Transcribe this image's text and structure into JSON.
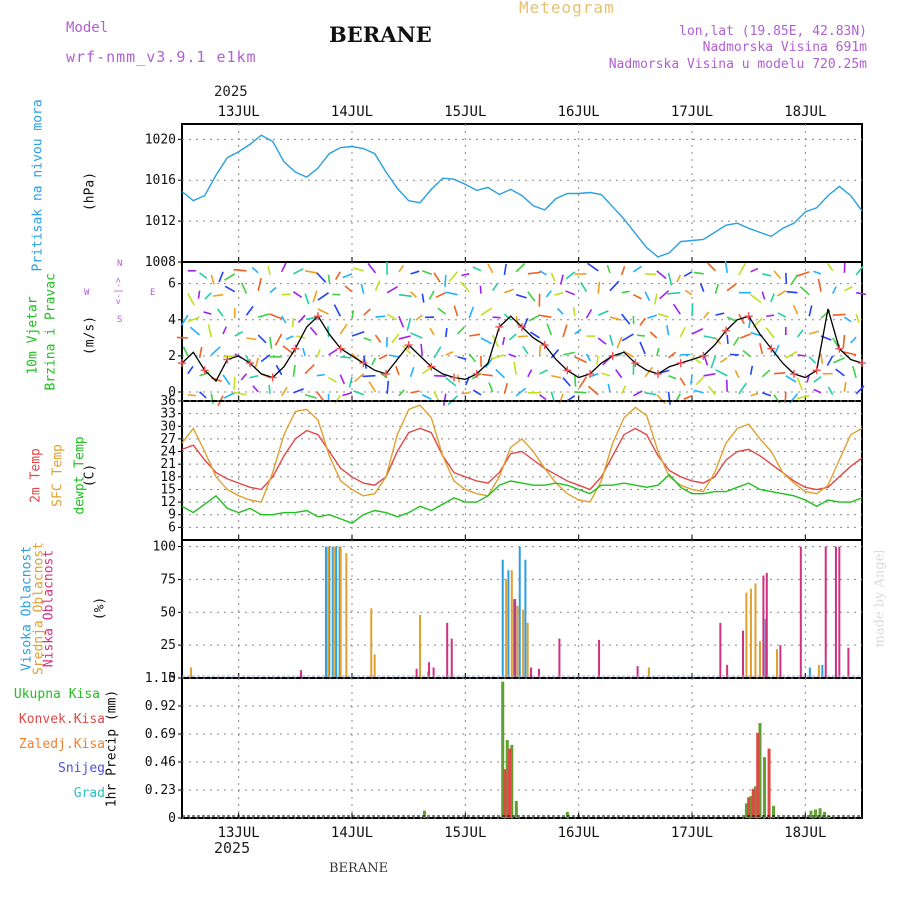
{
  "header": {
    "meteogram": "Meteogram",
    "model_label": "Model",
    "model_name": "wrf-nmm_v3.9.1 e1km",
    "station": "BERANE",
    "lonlat": "lon,lat (19.85E, 42.83N)",
    "altitude": "Nadmorska Visina 691m",
    "model_altitude": "Nadmorska Visina u modelu 720.25m",
    "year": "2025",
    "footer_station": "BERANE",
    "watermark": "made by Angel"
  },
  "colors": {
    "pressure": "#2aa0e0",
    "temp_2m": "#e04848",
    "sfc_temp": "#e0a030",
    "dewpt": "#20c020",
    "title_purple": "#b060d0",
    "meteogram": "#e8c070",
    "grid": "#888888"
  },
  "chart_data": [
    {
      "type": "line",
      "panel": "pressure",
      "ylabel_title": "Pritisak na nivou mora",
      "ylabel_unit": "(hPa)",
      "ylim": [
        1008,
        1021.5
      ],
      "yticks": [
        1008,
        1012,
        1016,
        1020
      ],
      "xlim": [
        12.5,
        18.5
      ],
      "xticks": [
        "13JUL",
        "14JUL",
        "15JUL",
        "16JUL",
        "17JUL",
        "18JUL"
      ],
      "grid": true,
      "series": [
        {
          "name": "",
          "x": [
            12.5,
            12.6,
            12.7,
            12.8,
            12.9,
            13.0,
            13.1,
            13.2,
            13.3,
            13.4,
            13.5,
            13.6,
            13.7,
            13.8,
            13.9,
            14.0,
            14.1,
            14.2,
            14.3,
            14.4,
            14.5,
            14.6,
            14.7,
            14.8,
            14.9,
            15.0,
            15.1,
            15.2,
            15.3,
            15.4,
            15.5,
            15.6,
            15.7,
            15.8,
            15.9,
            16.0,
            16.1,
            16.2,
            16.3,
            16.4,
            16.5,
            16.6,
            16.7,
            16.8,
            16.9,
            17.0,
            17.1,
            17.2,
            17.3,
            17.4,
            17.5,
            17.6,
            17.7,
            17.8,
            17.9,
            18.0,
            18.1,
            18.2,
            18.3,
            18.4,
            18.5
          ],
          "values": [
            1014.9,
            1014.0,
            1014.5,
            1016.5,
            1018.2,
            1018.8,
            1019.5,
            1020.4,
            1019.8,
            1017.8,
            1016.8,
            1016.3,
            1017.2,
            1018.6,
            1019.2,
            1019.3,
            1019.1,
            1018.6,
            1016.8,
            1015.2,
            1014.0,
            1013.8,
            1015.1,
            1016.2,
            1016.1,
            1015.6,
            1015.0,
            1015.3,
            1014.6,
            1015.1,
            1014.5,
            1013.5,
            1013.1,
            1014.2,
            1014.7,
            1014.7,
            1014.8,
            1014.6,
            1013.4,
            1012.2,
            1010.8,
            1009.4,
            1008.5,
            1008.9,
            1010.0,
            1010.1,
            1010.2,
            1010.9,
            1011.6,
            1011.8,
            1011.3,
            1010.9,
            1010.5,
            1011.3,
            1011.8,
            1012.9,
            1013.3,
            1014.5,
            1015.4,
            1014.5,
            1013.0
          ]
        }
      ]
    },
    {
      "type": "line",
      "panel": "wind",
      "ylabel_title": "10m Vjetar",
      "ylabel_title2": "Brzina i Pravac",
      "ylabel_unit": "(m/s)",
      "compass": {
        "w": "W",
        "n": "N",
        "e": "E",
        "s": "S",
        "arrows": "<-|->"
      },
      "ylim": [
        -0.5,
        7.2
      ],
      "yticks": [
        0,
        2,
        4,
        6
      ],
      "xlim": [
        12.5,
        18.5
      ],
      "grid": true,
      "series": [
        {
          "name": "",
          "x": [
            12.5,
            12.6,
            12.7,
            12.8,
            12.9,
            13.0,
            13.1,
            13.2,
            13.3,
            13.4,
            13.5,
            13.6,
            13.7,
            13.8,
            13.9,
            14.0,
            14.1,
            14.2,
            14.3,
            14.4,
            14.5,
            14.6,
            14.7,
            14.8,
            14.9,
            15.0,
            15.1,
            15.2,
            15.3,
            15.4,
            15.5,
            15.6,
            15.7,
            15.8,
            15.9,
            16.0,
            16.1,
            16.2,
            16.3,
            16.4,
            16.5,
            16.6,
            16.7,
            16.8,
            16.9,
            17.0,
            17.1,
            17.2,
            17.3,
            17.4,
            17.5,
            17.6,
            17.7,
            17.8,
            17.9,
            18.0,
            18.1,
            18.2,
            18.3,
            18.4,
            18.5
          ],
          "values": [
            1.6,
            2.2,
            1.2,
            0.6,
            1.8,
            2.0,
            1.6,
            1.0,
            0.8,
            1.4,
            2.4,
            3.6,
            4.2,
            3.2,
            2.4,
            2.0,
            1.6,
            1.2,
            1.0,
            1.8,
            2.6,
            2.0,
            1.4,
            1.0,
            0.8,
            0.7,
            1.0,
            1.6,
            3.6,
            4.2,
            3.6,
            3.0,
            2.6,
            1.8,
            1.2,
            0.8,
            1.0,
            1.6,
            2.0,
            2.2,
            1.6,
            1.2,
            1.0,
            1.4,
            1.6,
            1.8,
            2.0,
            2.6,
            3.4,
            4.0,
            4.2,
            3.2,
            2.4,
            1.6,
            1.0,
            0.8,
            1.2,
            4.6,
            2.4,
            1.8,
            1.6
          ]
        }
      ]
    },
    {
      "type": "line",
      "panel": "temperature",
      "ylabel_t2m": "2m Temp",
      "ylabel_sfc": "SFC Temp",
      "ylabel_dew": "dewpt Temp",
      "ylabel_unit": "(C)",
      "ylim": [
        3,
        36
      ],
      "yticks": [
        6,
        9,
        12,
        15,
        18,
        21,
        24,
        27,
        30,
        33,
        36
      ],
      "xlim": [
        12.5,
        18.5
      ],
      "grid": true,
      "series": [
        {
          "name": "2m Temp",
          "x": [
            12.5,
            12.6,
            12.7,
            12.8,
            12.9,
            13.0,
            13.1,
            13.2,
            13.3,
            13.4,
            13.5,
            13.6,
            13.7,
            13.8,
            13.9,
            14.0,
            14.1,
            14.2,
            14.3,
            14.4,
            14.5,
            14.6,
            14.7,
            14.8,
            14.9,
            15.0,
            15.1,
            15.2,
            15.3,
            15.4,
            15.5,
            15.6,
            15.7,
            15.8,
            15.9,
            16.0,
            16.1,
            16.2,
            16.3,
            16.4,
            16.5,
            16.6,
            16.7,
            16.8,
            16.9,
            17.0,
            17.1,
            17.2,
            17.3,
            17.4,
            17.5,
            17.6,
            17.7,
            17.8,
            17.9,
            18.0,
            18.1,
            18.2,
            18.3,
            18.4,
            18.5
          ],
          "values": [
            24.5,
            25.5,
            22.0,
            19.0,
            17.5,
            16.5,
            15.5,
            15.0,
            18.0,
            23.0,
            27.0,
            29.0,
            28.0,
            24.0,
            20.0,
            18.0,
            16.5,
            16.0,
            18.0,
            24.0,
            28.5,
            29.5,
            28.5,
            23.0,
            19.0,
            18.0,
            17.0,
            16.5,
            19.0,
            23.5,
            24.0,
            22.0,
            20.0,
            18.5,
            17.0,
            16.0,
            15.0,
            18.0,
            23.0,
            28.0,
            29.5,
            28.0,
            23.0,
            19.5,
            18.0,
            17.0,
            16.5,
            18.0,
            22.0,
            24.0,
            24.5,
            23.0,
            21.0,
            19.0,
            17.0,
            15.5,
            15.0,
            15.5,
            18.0,
            20.5,
            22.5
          ]
        },
        {
          "name": "SFC Temp",
          "x": [
            12.5,
            12.6,
            12.7,
            12.8,
            12.9,
            13.0,
            13.1,
            13.2,
            13.3,
            13.4,
            13.5,
            13.6,
            13.7,
            13.8,
            13.9,
            14.0,
            14.1,
            14.2,
            14.3,
            14.4,
            14.5,
            14.6,
            14.7,
            14.8,
            14.9,
            15.0,
            15.1,
            15.2,
            15.3,
            15.4,
            15.5,
            15.6,
            15.7,
            15.8,
            15.9,
            16.0,
            16.1,
            16.2,
            16.3,
            16.4,
            16.5,
            16.6,
            16.7,
            16.8,
            16.9,
            17.0,
            17.1,
            17.2,
            17.3,
            17.4,
            17.5,
            17.6,
            17.7,
            17.8,
            17.9,
            18.0,
            18.1,
            18.2,
            18.3,
            18.4,
            18.5
          ],
          "values": [
            26.0,
            29.5,
            24.0,
            18.0,
            15.0,
            13.5,
            12.5,
            12.0,
            19.0,
            28.0,
            33.5,
            34.0,
            31.5,
            23.0,
            17.0,
            15.0,
            13.5,
            14.0,
            18.0,
            28.0,
            34.0,
            35.0,
            32.0,
            23.0,
            17.0,
            15.0,
            14.0,
            13.5,
            18.0,
            25.0,
            27.0,
            24.0,
            20.0,
            16.5,
            14.0,
            12.5,
            12.0,
            17.0,
            26.0,
            32.0,
            34.5,
            32.5,
            24.0,
            18.0,
            16.0,
            15.0,
            14.5,
            19.0,
            26.0,
            29.5,
            30.5,
            27.0,
            24.0,
            19.0,
            16.5,
            14.5,
            14.0,
            16.0,
            22.0,
            28.0,
            29.5
          ]
        },
        {
          "name": "dewpt Temp",
          "x": [
            12.5,
            12.6,
            12.7,
            12.8,
            12.9,
            13.0,
            13.1,
            13.2,
            13.3,
            13.4,
            13.5,
            13.6,
            13.7,
            13.8,
            13.9,
            14.0,
            14.1,
            14.2,
            14.3,
            14.4,
            14.5,
            14.6,
            14.7,
            14.8,
            14.9,
            15.0,
            15.1,
            15.2,
            15.3,
            15.4,
            15.5,
            15.6,
            15.7,
            15.8,
            15.9,
            16.0,
            16.1,
            16.2,
            16.3,
            16.4,
            16.5,
            16.6,
            16.7,
            16.8,
            16.9,
            17.0,
            17.1,
            17.2,
            17.3,
            17.4,
            17.5,
            17.6,
            17.7,
            17.8,
            17.9,
            18.0,
            18.1,
            18.2,
            18.3,
            18.4,
            18.5
          ],
          "values": [
            11.0,
            9.5,
            11.5,
            13.5,
            10.5,
            9.5,
            10.5,
            9.0,
            9.0,
            9.5,
            9.5,
            10.0,
            8.5,
            9.0,
            8.0,
            7.0,
            9.0,
            10.0,
            9.5,
            8.5,
            9.5,
            11.0,
            10.0,
            11.5,
            13.0,
            12.0,
            12.0,
            13.5,
            16.0,
            17.0,
            16.5,
            16.0,
            16.0,
            16.5,
            16.0,
            15.0,
            14.0,
            16.0,
            16.0,
            16.5,
            16.0,
            15.5,
            16.0,
            18.5,
            15.5,
            14.0,
            14.0,
            14.5,
            14.5,
            15.5,
            16.5,
            15.0,
            14.5,
            14.0,
            13.5,
            12.5,
            11.0,
            12.5,
            12.0,
            12.0,
            13.0
          ]
        }
      ]
    },
    {
      "type": "bar",
      "panel": "clouds",
      "ylabel_high": "Visoka Oblacnost",
      "ylabel_mid": "Srednja Oblacnost",
      "ylabel_low": "Niska Oblacnost",
      "ylabel_unit": "(%)",
      "ylim": [
        0,
        105
      ],
      "yticks": [
        0,
        25,
        50,
        75,
        100
      ],
      "xlim": [
        12.5,
        18.5
      ],
      "grid": true,
      "series": [
        {
          "name": "Visoka Oblacnost",
          "x": [
            13.77,
            13.8,
            13.83,
            13.86,
            13.89,
            15.33,
            15.38,
            15.43,
            15.48,
            15.53,
            17.65,
            18.04,
            18.15
          ],
          "values": [
            100,
            100,
            100,
            100,
            100,
            90,
            82,
            60,
            100,
            90,
            45,
            8,
            10
          ]
        },
        {
          "name": "Srednja Oblacnost",
          "x": [
            12.58,
            13.79,
            13.84,
            13.9,
            13.95,
            14.17,
            14.2,
            14.6,
            14.67,
            15.36,
            15.41,
            15.46,
            15.51,
            15.55,
            16.62,
            17.48,
            17.52,
            17.56,
            17.6,
            17.75,
            18.12
          ],
          "values": [
            8,
            100,
            100,
            100,
            95,
            53,
            18,
            48,
            5,
            75,
            82,
            55,
            52,
            42,
            8,
            65,
            68,
            72,
            28,
            22,
            10
          ]
        },
        {
          "name": "Niska Oblacnost",
          "x": [
            13.55,
            14.57,
            14.68,
            14.72,
            14.84,
            14.88,
            15.44,
            15.58,
            15.65,
            15.83,
            16.18,
            16.52,
            17.25,
            17.31,
            17.45,
            17.63,
            17.66,
            17.78,
            17.96,
            18.18,
            18.27,
            18.3,
            18.38
          ],
          "values": [
            6,
            7,
            12,
            8,
            42,
            30,
            60,
            8,
            7,
            30,
            29,
            9,
            42,
            10,
            36,
            78,
            80,
            25,
            100,
            100,
            100,
            100,
            23
          ]
        }
      ]
    },
    {
      "type": "bar",
      "panel": "precipitation",
      "ylabel_total": "Ukupna Kisa",
      "ylabel_conv": "Konvek.Kisa",
      "ylabel_frz": "Zaledj.Kisa",
      "ylabel_snow": "Snijeg",
      "ylabel_hail": "Grad",
      "ylabel_unit": "1hr Precip (mm)",
      "ylim": [
        0,
        1.15
      ],
      "yticks": [
        "0",
        "0.23",
        "0.46",
        "0.69",
        "0.92",
        "1.15"
      ],
      "xlim": [
        12.5,
        18.5
      ],
      "grid": true,
      "series": [
        {
          "name": "Ukupna Kisa",
          "x": [
            14.64,
            15.33,
            15.37,
            15.41,
            15.45,
            15.9,
            17.48,
            17.52,
            17.56,
            17.6,
            17.64,
            17.72,
            18.05,
            18.09,
            18.13,
            18.17,
            18.21
          ],
          "values": [
            0.06,
            1.12,
            0.64,
            0.6,
            0.14,
            0.05,
            0.12,
            0.18,
            0.26,
            0.78,
            0.5,
            0.1,
            0.06,
            0.07,
            0.08,
            0.05,
            0.02
          ]
        },
        {
          "name": "Konvek.Kisa",
          "x": [
            15.35,
            15.39,
            17.5,
            17.54,
            17.58,
            17.68
          ],
          "values": [
            0.4,
            0.57,
            0.17,
            0.24,
            0.7,
            0.57
          ]
        }
      ]
    }
  ]
}
